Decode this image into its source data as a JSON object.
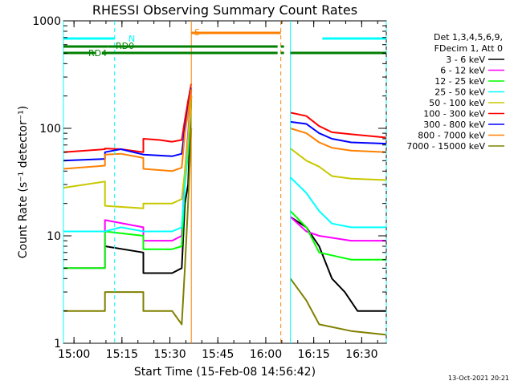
{
  "chart_data": {
    "type": "line",
    "title": "RHESSI Observing Summary Count Rates",
    "xlabel": "Start Time (15-Feb-08 14:56:42)",
    "ylabel": "Count Rate (s⁻¹ detector⁻¹)",
    "y_scale": "log",
    "ylim": [
      1,
      1000
    ],
    "xlim_minutes_after_start": [
      0,
      101
    ],
    "x_tick_labels": [
      "15:00",
      "15:15",
      "15:30",
      "15:45",
      "16:00",
      "16:15",
      "16:30"
    ],
    "y_tick_labels": [
      "1",
      "10",
      "100",
      "1000"
    ],
    "grid": false,
    "legend_position": "right",
    "legend_header": [
      "Det 1,3,4,5,6,9,",
      "FDecim 1, Att 0"
    ],
    "footer": "13-Oct-2021 20:21",
    "annotations": {
      "N": {
        "label": "N",
        "color": "#00ffff"
      },
      "RD0": {
        "label": "RD0",
        "color": "#008000"
      },
      "RD4": {
        "label": "RD4",
        "color": "#008000"
      },
      "S": {
        "label": "S",
        "color": "#ff8000"
      }
    },
    "series": [
      {
        "name": "3 - 6 keV",
        "color": "#000000",
        "points": [
          [
            0,
            0
          ],
          [
            13,
            0
          ],
          [
            13,
            8
          ],
          [
            25,
            7
          ],
          [
            25,
            4.5
          ],
          [
            34,
            4.5
          ],
          [
            37,
            5
          ],
          [
            38,
            20
          ],
          [
            39,
            30
          ],
          [
            40,
            200
          ],
          [
            68,
            0
          ],
          [
            71,
            15
          ],
          [
            76,
            12
          ],
          [
            80,
            8
          ],
          [
            84,
            4
          ],
          [
            88,
            3
          ],
          [
            92,
            2
          ],
          [
            101,
            2
          ]
        ]
      },
      {
        "name": "6 - 12 keV",
        "color": "#ff00ff",
        "points": [
          [
            0,
            5
          ],
          [
            13,
            5
          ],
          [
            13,
            14
          ],
          [
            25,
            12
          ],
          [
            25,
            9
          ],
          [
            34,
            9
          ],
          [
            37,
            10
          ],
          [
            38,
            40
          ],
          [
            39,
            90
          ],
          [
            40,
            230
          ],
          [
            68,
            0
          ],
          [
            71,
            15
          ],
          [
            76,
            11
          ],
          [
            80,
            10
          ],
          [
            90,
            9
          ],
          [
            101,
            9
          ]
        ]
      },
      {
        "name": "12 - 25 keV",
        "color": "#00ff00",
        "points": [
          [
            0,
            5
          ],
          [
            13,
            5
          ],
          [
            13,
            11
          ],
          [
            25,
            10
          ],
          [
            25,
            7.5
          ],
          [
            34,
            7.5
          ],
          [
            37,
            8
          ],
          [
            38,
            30
          ],
          [
            39,
            60
          ],
          [
            40,
            180
          ],
          [
            68,
            0
          ],
          [
            71,
            17
          ],
          [
            76,
            12
          ],
          [
            80,
            7
          ],
          [
            90,
            6
          ],
          [
            101,
            6
          ]
        ]
      },
      {
        "name": "25 - 50 keV",
        "color": "#00ffff",
        "points": [
          [
            0,
            11
          ],
          [
            13,
            11
          ],
          [
            13,
            11
          ],
          [
            18,
            12
          ],
          [
            25,
            11
          ],
          [
            25,
            11
          ],
          [
            34,
            11
          ],
          [
            37,
            12
          ],
          [
            38,
            30
          ],
          [
            39,
            70
          ],
          [
            40,
            200
          ],
          [
            68,
            0
          ],
          [
            71,
            35
          ],
          [
            76,
            25
          ],
          [
            80,
            17
          ],
          [
            84,
            13
          ],
          [
            90,
            12
          ],
          [
            101,
            12
          ]
        ]
      },
      {
        "name": "50 - 100 keV",
        "color": "#c8c800",
        "points": [
          [
            0,
            28
          ],
          [
            13,
            32
          ],
          [
            13,
            19
          ],
          [
            25,
            18
          ],
          [
            25,
            20
          ],
          [
            34,
            20
          ],
          [
            37,
            22
          ],
          [
            38,
            40
          ],
          [
            39,
            80
          ],
          [
            40,
            200
          ],
          [
            68,
            0
          ],
          [
            71,
            65
          ],
          [
            76,
            50
          ],
          [
            80,
            44
          ],
          [
            84,
            36
          ],
          [
            90,
            34
          ],
          [
            101,
            33
          ]
        ]
      },
      {
        "name": "100 - 300 keV",
        "color": "#ff0000",
        "points": [
          [
            0,
            60
          ],
          [
            13,
            64
          ],
          [
            13,
            65
          ],
          [
            18,
            64
          ],
          [
            25,
            60
          ],
          [
            25,
            80
          ],
          [
            30,
            78
          ],
          [
            34,
            75
          ],
          [
            37,
            78
          ],
          [
            38,
            120
          ],
          [
            39,
            180
          ],
          [
            40,
            260
          ],
          [
            68,
            0
          ],
          [
            71,
            140
          ],
          [
            76,
            130
          ],
          [
            80,
            105
          ],
          [
            84,
            92
          ],
          [
            90,
            88
          ],
          [
            101,
            82
          ]
        ]
      },
      {
        "name": "300 - 800 keV",
        "color": "#0000ff",
        "points": [
          [
            0,
            50
          ],
          [
            13,
            52
          ],
          [
            13,
            60
          ],
          [
            18,
            64
          ],
          [
            25,
            57
          ],
          [
            25,
            57
          ],
          [
            34,
            55
          ],
          [
            37,
            58
          ],
          [
            38,
            100
          ],
          [
            39,
            150
          ],
          [
            40,
            240
          ],
          [
            68,
            0
          ],
          [
            71,
            115
          ],
          [
            76,
            110
          ],
          [
            80,
            90
          ],
          [
            84,
            80
          ],
          [
            90,
            74
          ],
          [
            101,
            72
          ]
        ]
      },
      {
        "name": "800 - 7000 keV",
        "color": "#ff8000",
        "points": [
          [
            0,
            42
          ],
          [
            13,
            45
          ],
          [
            13,
            57
          ],
          [
            18,
            58
          ],
          [
            25,
            53
          ],
          [
            25,
            42
          ],
          [
            34,
            40
          ],
          [
            37,
            43
          ],
          [
            38,
            90
          ],
          [
            39,
            140
          ],
          [
            40,
            230
          ],
          [
            68,
            0
          ],
          [
            71,
            100
          ],
          [
            76,
            90
          ],
          [
            80,
            74
          ],
          [
            84,
            66
          ],
          [
            90,
            62
          ],
          [
            101,
            60
          ]
        ]
      },
      {
        "name": "7000 - 15000 keV",
        "color": "#808000",
        "points": [
          [
            0,
            2
          ],
          [
            13,
            2
          ],
          [
            13,
            3
          ],
          [
            25,
            3
          ],
          [
            25,
            2
          ],
          [
            34,
            2
          ],
          [
            37,
            1.5
          ],
          [
            38,
            5
          ],
          [
            39,
            20
          ],
          [
            40,
            100
          ],
          [
            68,
            0
          ],
          [
            71,
            4
          ],
          [
            76,
            2.5
          ],
          [
            80,
            1.5
          ],
          [
            90,
            1.3
          ],
          [
            101,
            1.2
          ]
        ]
      }
    ]
  },
  "segments": {
    "N": {
      "color": "#00ffff",
      "spans": [
        [
          0,
          16
        ],
        [
          81,
          101
        ]
      ]
    },
    "RD0": {
      "color": "#008000",
      "spans": [
        [
          0,
          14
        ],
        [
          14,
          27
        ],
        [
          27,
          67
        ],
        [
          68,
          69
        ]
      ]
    },
    "RD4": {
      "color": "#008000",
      "spans": [
        [
          0,
          10
        ],
        [
          12,
          27
        ],
        [
          27,
          67
        ],
        [
          68,
          69
        ],
        [
          71,
          101
        ]
      ]
    },
    "S": {
      "color": "#ff8000",
      "spans": [
        [
          40,
          68
        ]
      ]
    }
  },
  "vertical_markers": [
    {
      "x": 0,
      "color": "#00ffff",
      "style": "solid"
    },
    {
      "x": 16,
      "color": "#00ffff",
      "style": "dashed"
    },
    {
      "x": 40,
      "color": "#ff8000",
      "style": "solid"
    },
    {
      "x": 68,
      "color": "#ff8000",
      "style": "dashed"
    },
    {
      "x": 71,
      "color": "#00ffff",
      "style": "solid"
    },
    {
      "x": 101,
      "color": "#00ffff",
      "style": "dashed"
    }
  ]
}
